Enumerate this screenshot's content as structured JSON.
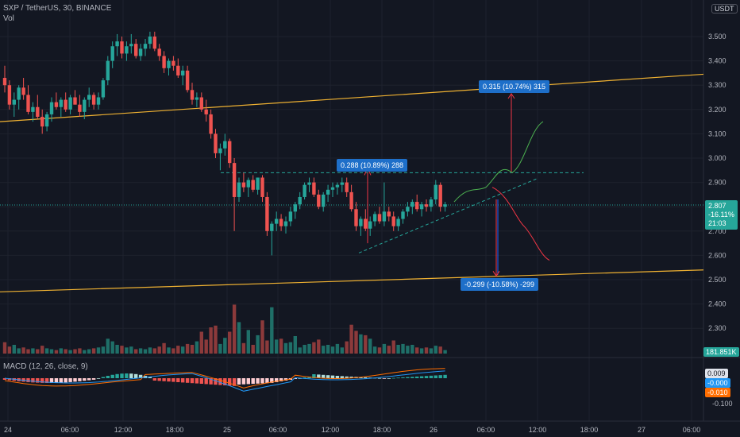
{
  "header": {
    "title": "SXP / TetherUS, 30, BINANCE",
    "volume_label": "Vol",
    "macd_label": "MACD (12, 26, close, 9)"
  },
  "price_axis": {
    "unit": "USDT",
    "ticks": [
      "3.500",
      "3.400",
      "3.300",
      "3.200",
      "3.100",
      "3.000",
      "2.900",
      "2.800",
      "2.700",
      "2.600",
      "2.500",
      "2.400",
      "2.300"
    ]
  },
  "price_badge": {
    "price": "2.807",
    "change": "-16.11%",
    "countdown": "21:03"
  },
  "volume_badge": "181.851K",
  "macd_axis": {
    "ticks": [
      "-0.100"
    ]
  },
  "macd_badges": {
    "histogram": "0.009",
    "macd": "-0.000",
    "signal": "-0.010"
  },
  "time_axis": {
    "ticks": [
      "24",
      "06:00",
      "12:00",
      "18:00",
      "25",
      "06:00",
      "12:00",
      "18:00",
      "26",
      "06:00",
      "12:00",
      "18:00",
      "27",
      "06:00"
    ]
  },
  "annotations": {
    "pattern_height": "0.288 (10.89%) 288",
    "target_up": "0.315 (10.74%) 315",
    "target_down": "-0.299 (-10.58%) -299"
  },
  "colors": {
    "background": "#131722",
    "up": "#26a69a",
    "down": "#ef5350",
    "trendline": "#f0b232",
    "macd_line": "#2196f3",
    "signal_line": "#ff6d00",
    "label": "#1e6fc9",
    "projection_up": "#4caf50",
    "projection_down": "#f23645"
  },
  "chart_data": {
    "type": "candlestick",
    "symbol": "SXP / TetherUS",
    "interval": "30",
    "exchange": "BINANCE",
    "ylim": [
      2.3,
      3.55
    ],
    "ohlc": [
      [
        3.33,
        3.38,
        3.27,
        3.3
      ],
      [
        3.3,
        3.32,
        3.2,
        3.22
      ],
      [
        3.22,
        3.27,
        3.17,
        3.24
      ],
      [
        3.24,
        3.3,
        3.2,
        3.29
      ],
      [
        3.29,
        3.33,
        3.24,
        3.26
      ],
      [
        3.26,
        3.3,
        3.18,
        3.19
      ],
      [
        3.19,
        3.23,
        3.15,
        3.21
      ],
      [
        3.21,
        3.26,
        3.16,
        3.17
      ],
      [
        3.17,
        3.2,
        3.1,
        3.13
      ],
      [
        3.13,
        3.19,
        3.11,
        3.18
      ],
      [
        3.18,
        3.25,
        3.15,
        3.23
      ],
      [
        3.23,
        3.27,
        3.2,
        3.21
      ],
      [
        3.21,
        3.25,
        3.17,
        3.24
      ],
      [
        3.24,
        3.27,
        3.19,
        3.2
      ],
      [
        3.2,
        3.26,
        3.18,
        3.25
      ],
      [
        3.25,
        3.28,
        3.22,
        3.22
      ],
      [
        3.22,
        3.26,
        3.17,
        3.19
      ],
      [
        3.19,
        3.25,
        3.16,
        3.24
      ],
      [
        3.24,
        3.29,
        3.21,
        3.26
      ],
      [
        3.26,
        3.27,
        3.2,
        3.22
      ],
      [
        3.22,
        3.27,
        3.2,
        3.25
      ],
      [
        3.25,
        3.33,
        3.24,
        3.32
      ],
      [
        3.32,
        3.42,
        3.3,
        3.4
      ],
      [
        3.4,
        3.48,
        3.37,
        3.46
      ],
      [
        3.46,
        3.51,
        3.42,
        3.48
      ],
      [
        3.48,
        3.5,
        3.41,
        3.43
      ],
      [
        3.43,
        3.48,
        3.4,
        3.46
      ],
      [
        3.46,
        3.51,
        3.43,
        3.47
      ],
      [
        3.47,
        3.49,
        3.41,
        3.42
      ],
      [
        3.42,
        3.47,
        3.4,
        3.45
      ],
      [
        3.45,
        3.49,
        3.42,
        3.47
      ],
      [
        3.47,
        3.52,
        3.45,
        3.5
      ],
      [
        3.5,
        3.52,
        3.44,
        3.45
      ],
      [
        3.45,
        3.47,
        3.4,
        3.42
      ],
      [
        3.42,
        3.44,
        3.35,
        3.37
      ],
      [
        3.37,
        3.41,
        3.34,
        3.4
      ],
      [
        3.4,
        3.42,
        3.36,
        3.38
      ],
      [
        3.38,
        3.41,
        3.33,
        3.34
      ],
      [
        3.34,
        3.38,
        3.3,
        3.36
      ],
      [
        3.36,
        3.38,
        3.27,
        3.28
      ],
      [
        3.28,
        3.31,
        3.22,
        3.24
      ],
      [
        3.24,
        3.27,
        3.21,
        3.25
      ],
      [
        3.25,
        3.27,
        3.19,
        3.2
      ],
      [
        3.2,
        3.24,
        3.15,
        3.18
      ],
      [
        3.18,
        3.2,
        3.08,
        3.1
      ],
      [
        3.1,
        3.12,
        3.0,
        3.02
      ],
      [
        3.02,
        3.06,
        2.95,
        3.04
      ],
      [
        3.04,
        3.1,
        3.01,
        3.07
      ],
      [
        3.07,
        3.08,
        2.96,
        2.98
      ],
      [
        2.98,
        3.0,
        2.7,
        2.84
      ],
      [
        2.84,
        2.92,
        2.82,
        2.9
      ],
      [
        2.9,
        2.94,
        2.86,
        2.88
      ],
      [
        2.88,
        2.92,
        2.84,
        2.91
      ],
      [
        2.91,
        2.93,
        2.86,
        2.87
      ],
      [
        2.87,
        2.92,
        2.85,
        2.92
      ],
      [
        2.92,
        2.93,
        2.82,
        2.84
      ],
      [
        2.84,
        2.86,
        2.68,
        2.7
      ],
      [
        2.7,
        2.74,
        2.6,
        2.73
      ],
      [
        2.73,
        2.78,
        2.7,
        2.75
      ],
      [
        2.75,
        2.77,
        2.7,
        2.72
      ],
      [
        2.72,
        2.76,
        2.69,
        2.74
      ],
      [
        2.74,
        2.8,
        2.72,
        2.78
      ],
      [
        2.78,
        2.82,
        2.75,
        2.81
      ],
      [
        2.81,
        2.86,
        2.79,
        2.84
      ],
      [
        2.84,
        2.9,
        2.83,
        2.89
      ],
      [
        2.89,
        2.92,
        2.86,
        2.9
      ],
      [
        2.9,
        2.92,
        2.84,
        2.85
      ],
      [
        2.85,
        2.87,
        2.79,
        2.8
      ],
      [
        2.8,
        2.86,
        2.78,
        2.85
      ],
      [
        2.85,
        2.89,
        2.82,
        2.87
      ],
      [
        2.87,
        2.9,
        2.84,
        2.88
      ],
      [
        2.88,
        2.9,
        2.85,
        2.89
      ],
      [
        2.89,
        2.92,
        2.86,
        2.9
      ],
      [
        2.9,
        2.92,
        2.84,
        2.86
      ],
      [
        2.86,
        2.89,
        2.78,
        2.79
      ],
      [
        2.79,
        2.82,
        2.7,
        2.72
      ],
      [
        2.72,
        2.76,
        2.68,
        2.75
      ],
      [
        2.75,
        2.79,
        2.7,
        2.71
      ],
      [
        2.71,
        2.76,
        2.68,
        2.74
      ],
      [
        2.74,
        2.78,
        2.72,
        2.77
      ],
      [
        2.77,
        2.8,
        2.73,
        2.74
      ],
      [
        2.74,
        2.9,
        2.72,
        2.78
      ],
      [
        2.78,
        2.8,
        2.74,
        2.76
      ],
      [
        2.76,
        2.78,
        2.7,
        2.72
      ],
      [
        2.72,
        2.76,
        2.7,
        2.75
      ],
      [
        2.75,
        2.79,
        2.73,
        2.78
      ],
      [
        2.78,
        2.82,
        2.76,
        2.8
      ],
      [
        2.8,
        2.83,
        2.77,
        2.82
      ],
      [
        2.82,
        2.85,
        2.78,
        2.79
      ],
      [
        2.79,
        2.82,
        2.76,
        2.81
      ],
      [
        2.81,
        2.83,
        2.78,
        2.8
      ],
      [
        2.8,
        2.84,
        2.78,
        2.83
      ],
      [
        2.83,
        2.91,
        2.81,
        2.89
      ],
      [
        2.89,
        2.9,
        2.78,
        2.8
      ],
      [
        2.8,
        2.82,
        2.78,
        2.81
      ]
    ],
    "volume": [
      0.13,
      0.08,
      0.1,
      0.06,
      0.07,
      0.05,
      0.06,
      0.05,
      0.09,
      0.06,
      0.05,
      0.04,
      0.06,
      0.05,
      0.04,
      0.05,
      0.06,
      0.04,
      0.05,
      0.06,
      0.07,
      0.08,
      0.17,
      0.14,
      0.1,
      0.09,
      0.07,
      0.08,
      0.05,
      0.06,
      0.05,
      0.07,
      0.06,
      0.08,
      0.12,
      0.07,
      0.06,
      0.09,
      0.08,
      0.11,
      0.1,
      0.14,
      0.25,
      0.16,
      0.3,
      0.32,
      0.11,
      0.18,
      0.25,
      0.56,
      0.36,
      0.12,
      0.27,
      0.1,
      0.21,
      0.38,
      0.15,
      0.53,
      0.16,
      0.17,
      0.12,
      0.13,
      0.2,
      0.07,
      0.1,
      0.11,
      0.13,
      0.16,
      0.09,
      0.1,
      0.08,
      0.11,
      0.07,
      0.14,
      0.33,
      0.26,
      0.22,
      0.21,
      0.17,
      0.08,
      0.07,
      0.11,
      0.09,
      0.15,
      0.1,
      0.11,
      0.09,
      0.1,
      0.07,
      0.06,
      0.07,
      0.06,
      0.09,
      0.08,
      0.04
    ],
    "volume_unit_max_k": 650,
    "trendlines": [
      {
        "label": "upper",
        "points": [
          [
            "24 00:00",
            3.15
          ],
          [
            "26 18:00",
            3.34
          ]
        ]
      },
      {
        "label": "lower",
        "points": [
          [
            "24 00:00",
            2.45
          ],
          [
            "26 18:00",
            2.54
          ]
        ]
      },
      {
        "label": "triangle resistance",
        "points": [
          [
            "25 00:30",
            2.94
          ],
          [
            "26 06:00",
            2.94
          ]
        ]
      },
      {
        "label": "triangle support",
        "points": [
          [
            "25 15:00",
            2.61
          ],
          [
            "26 03:00",
            2.92
          ]
        ]
      }
    ],
    "measurements": [
      {
        "label": "0.288 (10.89%) 288",
        "from": 2.65,
        "to": 2.94
      },
      {
        "label": "0.315 (10.74%) 315",
        "from": 2.94,
        "to": 3.26
      },
      {
        "label": "-0.299 (-10.58%) -299",
        "from": 2.82,
        "to": 2.52
      }
    ],
    "macd": {
      "params": "12, 26, close, 9",
      "histogram_last": 0.009,
      "macd_last": -0.0,
      "signal_last": -0.01
    }
  }
}
